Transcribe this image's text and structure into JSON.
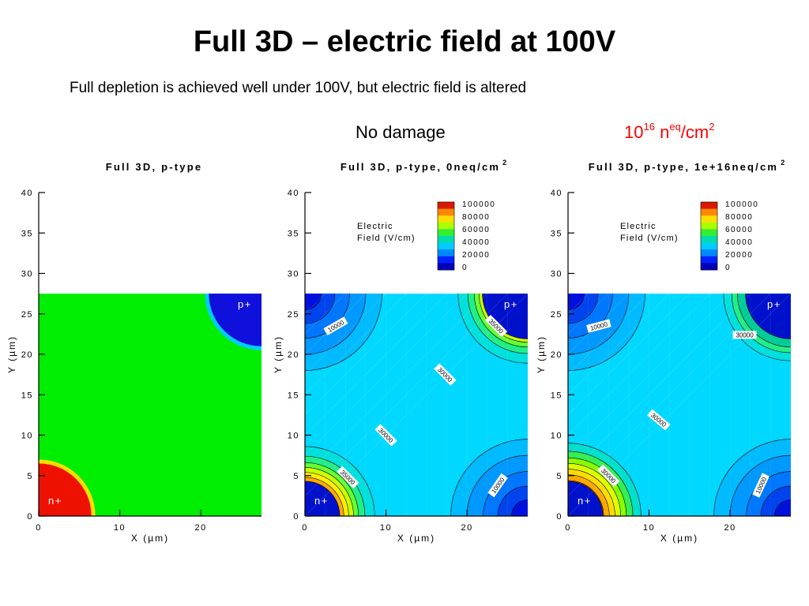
{
  "slide": {
    "title": "Full 3D – electric field at 100V",
    "subtitle": "Full depletion is achieved well under 100V, but electric field is altered",
    "label_no_damage": "No damage",
    "label_damage_base": "10",
    "label_damage_exp": "16",
    "label_damage_n": " n",
    "label_damage_eq": "eq",
    "label_damage_unit": "/cm",
    "label_damage_unit_exp": "2",
    "label_damage_color": "#ff0000"
  },
  "chart_data": [
    {
      "type": "heatmap",
      "title": "Full 3D, p-type",
      "xlabel": "X (µm)",
      "ylabel": "Y (µm)",
      "xlim": [
        0,
        27.5
      ],
      "ylim": [
        0,
        40
      ],
      "xticks": [
        0,
        10,
        20
      ],
      "yticks": [
        0,
        5,
        10,
        15,
        20,
        25,
        30,
        35,
        40
      ],
      "domain_ymax": 27.5,
      "electrodes": [
        {
          "label": "n+",
          "x": 0,
          "y": 0,
          "radius": 6.5
        },
        {
          "label": "p+",
          "x": 27.5,
          "y": 27.5,
          "radius": 6.5
        }
      ],
      "region_colors": {
        "bulk": "#00ee00",
        "n_plus": "#ee1100",
        "p_plus": "#1010dd"
      },
      "colorbar": null,
      "contour_labels": []
    },
    {
      "type": "heatmap",
      "title": "Full 3D, p-type, 0neq/cm",
      "title_sup": "2",
      "xlabel": "X (µm)",
      "ylabel": "Y (µm)",
      "xlim": [
        0,
        27.5
      ],
      "ylim": [
        0,
        40
      ],
      "xticks": [
        0,
        10,
        20
      ],
      "yticks": [
        0,
        5,
        10,
        15,
        20,
        25,
        30,
        35,
        40
      ],
      "domain_ymax": 27.5,
      "electrodes": [
        {
          "label": "n+",
          "x": 0,
          "y": 0
        },
        {
          "label": "p+",
          "x": 27.5,
          "y": 27.5
        }
      ],
      "colorbar": {
        "title_line1": "Electric",
        "title_line2": "Field (V/cm)",
        "levels": [
          100000,
          80000,
          60000,
          40000,
          20000,
          0
        ],
        "colors": [
          "#d91a00",
          "#ff8800",
          "#ffdd00",
          "#aaff00",
          "#33ee33",
          "#00ddaa",
          "#00ccff",
          "#0088ff",
          "#0022ff",
          "#0000bb"
        ]
      },
      "contour_labels": [
        {
          "text": "10000",
          "x": 3.8,
          "y": 23.5,
          "angle": -30
        },
        {
          "text": "35000",
          "x": 23.6,
          "y": 23.5,
          "angle": 45
        },
        {
          "text": "30000",
          "x": 17.3,
          "y": 17.5,
          "angle": 45
        },
        {
          "text": "30000",
          "x": 10.0,
          "y": 10.0,
          "angle": 45
        },
        {
          "text": "35000",
          "x": 5.3,
          "y": 4.8,
          "angle": 45
        },
        {
          "text": "10000",
          "x": 23.8,
          "y": 3.8,
          "angle": -55
        }
      ]
    },
    {
      "type": "heatmap",
      "title": "Full 3D, p-type, 1e+16neq/cm",
      "title_sup": "2",
      "xlabel": "X (µm)",
      "ylabel": "Y (µm)",
      "xlim": [
        0,
        27.5
      ],
      "ylim": [
        0,
        40
      ],
      "xticks": [
        0,
        10,
        20
      ],
      "yticks": [
        0,
        5,
        10,
        15,
        20,
        25,
        30,
        35,
        40
      ],
      "domain_ymax": 27.5,
      "electrodes": [
        {
          "label": "n+",
          "x": 0,
          "y": 0
        },
        {
          "label": "p+",
          "x": 27.5,
          "y": 27.5
        }
      ],
      "colorbar": {
        "title_line1": "Electric",
        "title_line2": "Field (V/cm)",
        "levels": [
          100000,
          80000,
          60000,
          40000,
          20000,
          0
        ],
        "colors": [
          "#d91a00",
          "#ff8800",
          "#ffdd00",
          "#aaff00",
          "#33ee33",
          "#00ddaa",
          "#00ccff",
          "#0088ff",
          "#0022ff",
          "#0000bb"
        ]
      },
      "contour_labels": [
        {
          "text": "10000",
          "x": 3.8,
          "y": 23.5,
          "angle": -15
        },
        {
          "text": "30000",
          "x": 21.8,
          "y": 22.4,
          "angle": 0
        },
        {
          "text": "30000",
          "x": 11.2,
          "y": 11.9,
          "angle": 40
        },
        {
          "text": "30000",
          "x": 5.0,
          "y": 5.0,
          "angle": 45
        },
        {
          "text": "10000",
          "x": 23.8,
          "y": 3.8,
          "angle": -65
        }
      ]
    }
  ]
}
